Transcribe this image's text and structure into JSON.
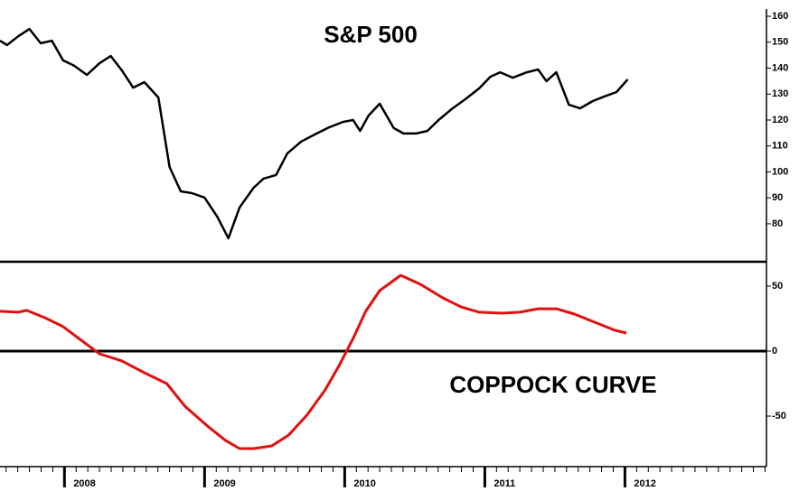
{
  "chart_data": [
    {
      "type": "line",
      "title": "S&P 500",
      "xlim": [
        2007.54,
        2013.01
      ],
      "ylim": [
        66.4,
        162.8
      ],
      "yticks": [
        80,
        90,
        100,
        110,
        120,
        130,
        140,
        150,
        160
      ],
      "series": [
        {
          "name": "S&P 500",
          "color": "#000000",
          "x": [
            2007.54,
            2007.59,
            2007.67,
            2007.75,
            2007.83,
            2007.91,
            2007.99,
            2008.07,
            2008.16,
            2008.25,
            2008.33,
            2008.41,
            2008.49,
            2008.57,
            2008.67,
            2008.75,
            2008.83,
            2008.91,
            2009.0,
            2009.09,
            2009.17,
            2009.25,
            2009.35,
            2009.42,
            2009.51,
            2009.59,
            2009.69,
            2009.8,
            2009.89,
            2009.99,
            2010.06,
            2010.11,
            2010.17,
            2010.25,
            2010.35,
            2010.42,
            2010.51,
            2010.59,
            2010.67,
            2010.77,
            2010.86,
            2010.96,
            2011.04,
            2011.11,
            2011.2,
            2011.3,
            2011.38,
            2011.44,
            2011.51,
            2011.6,
            2011.68,
            2011.77,
            2011.85,
            2011.94,
            2012.02
          ],
          "values": [
            150.6,
            148.9,
            152.3,
            155.1,
            149.6,
            150.6,
            143.0,
            140.9,
            137.4,
            141.9,
            144.7,
            139.1,
            132.5,
            134.6,
            128.7,
            101.9,
            92.5,
            91.8,
            90.1,
            82.8,
            74.4,
            86.3,
            93.9,
            97.4,
            98.8,
            107.1,
            111.7,
            114.8,
            117.2,
            119.3,
            120.0,
            115.8,
            121.7,
            126.3,
            116.9,
            114.8,
            114.8,
            115.8,
            120.0,
            124.5,
            128.0,
            132.2,
            136.7,
            138.4,
            136.3,
            138.4,
            139.5,
            135.0,
            138.4,
            125.9,
            124.5,
            127.3,
            129.0,
            130.8,
            135.7
          ]
        }
      ]
    },
    {
      "type": "line",
      "title": "COPPOCK CURVE",
      "xlim": [
        2007.54,
        2013.01
      ],
      "xticks": [
        2008,
        2009,
        2010,
        2011,
        2012
      ],
      "ylim": [
        -87.5,
        68.75
      ],
      "yticks": [
        -50,
        0,
        50
      ],
      "series": [
        {
          "name": "COPPOCK CURVE",
          "color": "#e01010",
          "x": [
            2007.54,
            2007.67,
            2007.73,
            2007.86,
            2007.99,
            2008.12,
            2008.25,
            2008.41,
            2008.57,
            2008.73,
            2008.86,
            2009.02,
            2009.15,
            2009.25,
            2009.35,
            2009.48,
            2009.6,
            2009.73,
            2009.86,
            2009.96,
            2010.06,
            2010.15,
            2010.25,
            2010.4,
            2010.54,
            2010.7,
            2010.83,
            2010.96,
            2011.12,
            2011.25,
            2011.38,
            2011.51,
            2011.64,
            2011.8,
            2011.93,
            2012.01
          ],
          "values": [
            30.6,
            29.9,
            31.3,
            25.7,
            18.8,
            8.3,
            -2.1,
            -7.6,
            -16.7,
            -25.0,
            -42.4,
            -57.6,
            -68.8,
            -75.0,
            -75.0,
            -72.9,
            -64.6,
            -49.3,
            -29.9,
            -11.1,
            9.7,
            30.6,
            46.5,
            58.3,
            51.4,
            41.0,
            34.0,
            29.9,
            29.2,
            29.9,
            32.6,
            32.6,
            28.5,
            21.5,
            16.0,
            13.9
          ]
        }
      ]
    }
  ]
}
